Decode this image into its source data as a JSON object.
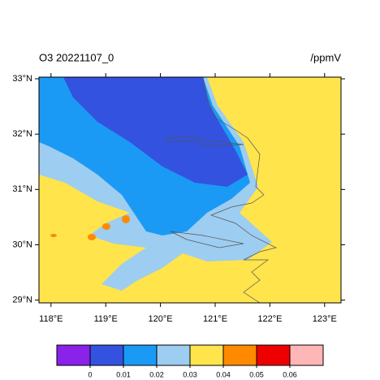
{
  "chart_data": {
    "type": "contour",
    "title": "O3 20221107_0",
    "units": "/ppmV",
    "xlim": [
      117.78,
      123.3
    ],
    "ylim": [
      28.95,
      33.03
    ],
    "xticks": [
      {
        "value": 118,
        "label": "118°E"
      },
      {
        "value": 119,
        "label": "119°E"
      },
      {
        "value": 120,
        "label": "120°E"
      },
      {
        "value": 121,
        "label": "121°E"
      },
      {
        "value": 122,
        "label": "122°E"
      },
      {
        "value": 123,
        "label": "123°E"
      }
    ],
    "yticks": [
      {
        "value": 29,
        "label": "29°N"
      },
      {
        "value": 30,
        "label": "30°N"
      },
      {
        "value": 31,
        "label": "31°N"
      },
      {
        "value": 32,
        "label": "32°N"
      },
      {
        "value": 33,
        "label": "33°N"
      }
    ],
    "levels": [
      0,
      0.01,
      0.02,
      0.03,
      0.04,
      0.05,
      0.06
    ],
    "colors": [
      "#8a22ea",
      "#3352e0",
      "#1b9af5",
      "#9dcdf0",
      "#ffe44b",
      "#ff8a00",
      "#ee0000",
      "#ffb6b6"
    ]
  }
}
